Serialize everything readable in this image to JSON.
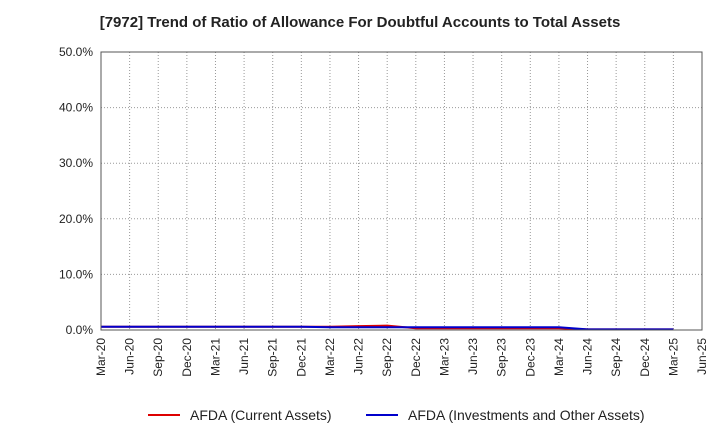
{
  "chart_data": {
    "type": "line",
    "title": "[7972]  Trend of Ratio of Allowance For Doubtful Accounts to Total Assets",
    "xlabel": "",
    "ylabel": "",
    "ylim": [
      0,
      50
    ],
    "y_ticks": [
      "0.0%",
      "10.0%",
      "20.0%",
      "30.0%",
      "40.0%",
      "50.0%"
    ],
    "x_tick_labels": [
      "Mar-20",
      "Jun-20",
      "Sep-20",
      "Dec-20",
      "Mar-21",
      "Jun-21",
      "Sep-21",
      "Dec-21",
      "Mar-22",
      "Jun-22",
      "Sep-22",
      "Dec-22",
      "Mar-23",
      "Jun-23",
      "Sep-23",
      "Dec-23",
      "Mar-24",
      "Jun-24",
      "Sep-24",
      "Dec-24",
      "Mar-25",
      "Jun-25"
    ],
    "x": [
      "Mar-20",
      "Jun-20",
      "Sep-20",
      "Dec-20",
      "Mar-21",
      "Jun-21",
      "Sep-21",
      "Dec-21",
      "Mar-22",
      "Jun-22",
      "Sep-22",
      "Dec-22",
      "Mar-23",
      "Jun-23",
      "Sep-23",
      "Dec-23",
      "Mar-24",
      "Jun-24",
      "Sep-24",
      "Dec-24",
      "Mar-25"
    ],
    "grid": true,
    "legend_position": "bottom",
    "series": [
      {
        "name": "AFDA (Current Assets)",
        "color": "#dd0000",
        "values": [
          0.6,
          0.6,
          0.6,
          0.6,
          0.6,
          0.6,
          0.6,
          0.6,
          0.6,
          0.7,
          0.8,
          0.3,
          0.3,
          0.3,
          0.3,
          0.3,
          0.3,
          0.1,
          0.1,
          0.1,
          0.1
        ]
      },
      {
        "name": "AFDA (Investments and Other Assets)",
        "color": "#0000cc",
        "values": [
          0.6,
          0.6,
          0.6,
          0.6,
          0.6,
          0.6,
          0.6,
          0.6,
          0.5,
          0.5,
          0.5,
          0.5,
          0.5,
          0.5,
          0.5,
          0.5,
          0.5,
          0.1,
          0.1,
          0.1,
          0.1
        ]
      }
    ]
  }
}
